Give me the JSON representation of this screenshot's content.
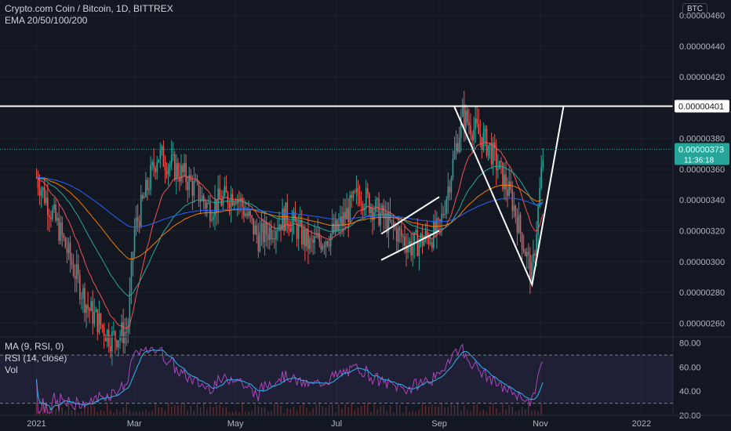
{
  "header": {
    "symbol_line": "Crypto.com Coin / Bitcoin, 1D, BITTREX",
    "ema_line": "EMA 20/50/100/200",
    "currency": "BTC"
  },
  "rsi_legend": {
    "ma_line": "MA (9, RSI, 0)",
    "rsi_line": "RSI (14, close)",
    "vol_line": "Vol"
  },
  "price_axis_labels": [
    "0.00000460",
    "0.00000440",
    "0.00000420",
    "0.00000401",
    "0.00000380",
    "0.00000373",
    "0.00000360",
    "0.00000340",
    "0.00000320",
    "0.00000300",
    "0.00000280",
    "0.00000260"
  ],
  "current_price": {
    "value": "0.00000373",
    "countdown": "11:36:18",
    "color": "#26a69a"
  },
  "resistance_label": "0.00000401",
  "rsi_axis_labels": [
    "80.00",
    "60.00",
    "40.00",
    "20.00"
  ],
  "time_labels": [
    "2021",
    "Mar",
    "May",
    "Jul",
    "Sep",
    "Nov",
    "2022"
  ],
  "colors": {
    "background": "#131722",
    "up": "#26a69a",
    "down": "#ef5350",
    "ema20": "#ef5350",
    "ema50": "#26a69a",
    "ema100": "#f57c00",
    "ema200": "#2962ff",
    "rsi": "#ab47bc",
    "rsi_ma": "#29b6f6",
    "drawing": "#ffffff"
  },
  "chart_data": {
    "type": "line",
    "title": "Crypto.com Coin / Bitcoin, 1D, BITTREX",
    "xlabel": "",
    "ylabel": "",
    "ylim": [
      2.52e-06,
      4.7e-06
    ],
    "x": [
      "2021-01-01",
      "2021-01-15",
      "2021-02-01",
      "2021-02-15",
      "2021-02-25",
      "2021-03-01",
      "2021-03-15",
      "2021-04-01",
      "2021-04-15",
      "2021-05-01",
      "2021-05-15",
      "2021-06-01",
      "2021-06-15",
      "2021-07-01",
      "2021-07-15",
      "2021-08-01",
      "2021-08-15",
      "2021-09-01",
      "2021-09-15",
      "2021-10-01",
      "2021-10-15",
      "2021-10-27",
      "2021-11-03"
    ],
    "series": [
      {
        "values": [
          3.55e-06,
          3.2e-06,
          2.7e-06,
          2.5e-06,
          2.55e-06,
          3.2e-06,
          3.7e-06,
          3.55e-06,
          3.35e-06,
          3.45e-06,
          3.15e-06,
          3.3e-06,
          3.1e-06,
          3.2e-06,
          3.45e-06,
          3.25e-06,
          3.1e-06,
          3.2e-06,
          3.95e-06,
          3.75e-06,
          3.4e-06,
          2.9e-06,
          3.73e-06
        ]
      }
    ],
    "annotations": [
      {
        "type": "horizontal_line",
        "value": 4.01e-06
      },
      {
        "type": "rising_channel",
        "from": "2021-07-28",
        "to": "2021-09-01",
        "upper": [
          3.18e-06,
          3.42e-06
        ],
        "lower": [
          3.01e-06,
          3.2e-06
        ]
      },
      {
        "type": "v_pattern",
        "points": [
          [
            "2021-09-10",
            4.01e-06
          ],
          [
            "2021-10-27",
            2.85e-06
          ],
          [
            "2021-11-15",
            4.01e-06
          ]
        ]
      }
    ],
    "rsi": {
      "ylim": [
        20,
        85
      ],
      "overbought": 70,
      "oversold": 30
    },
    "grid": true
  }
}
